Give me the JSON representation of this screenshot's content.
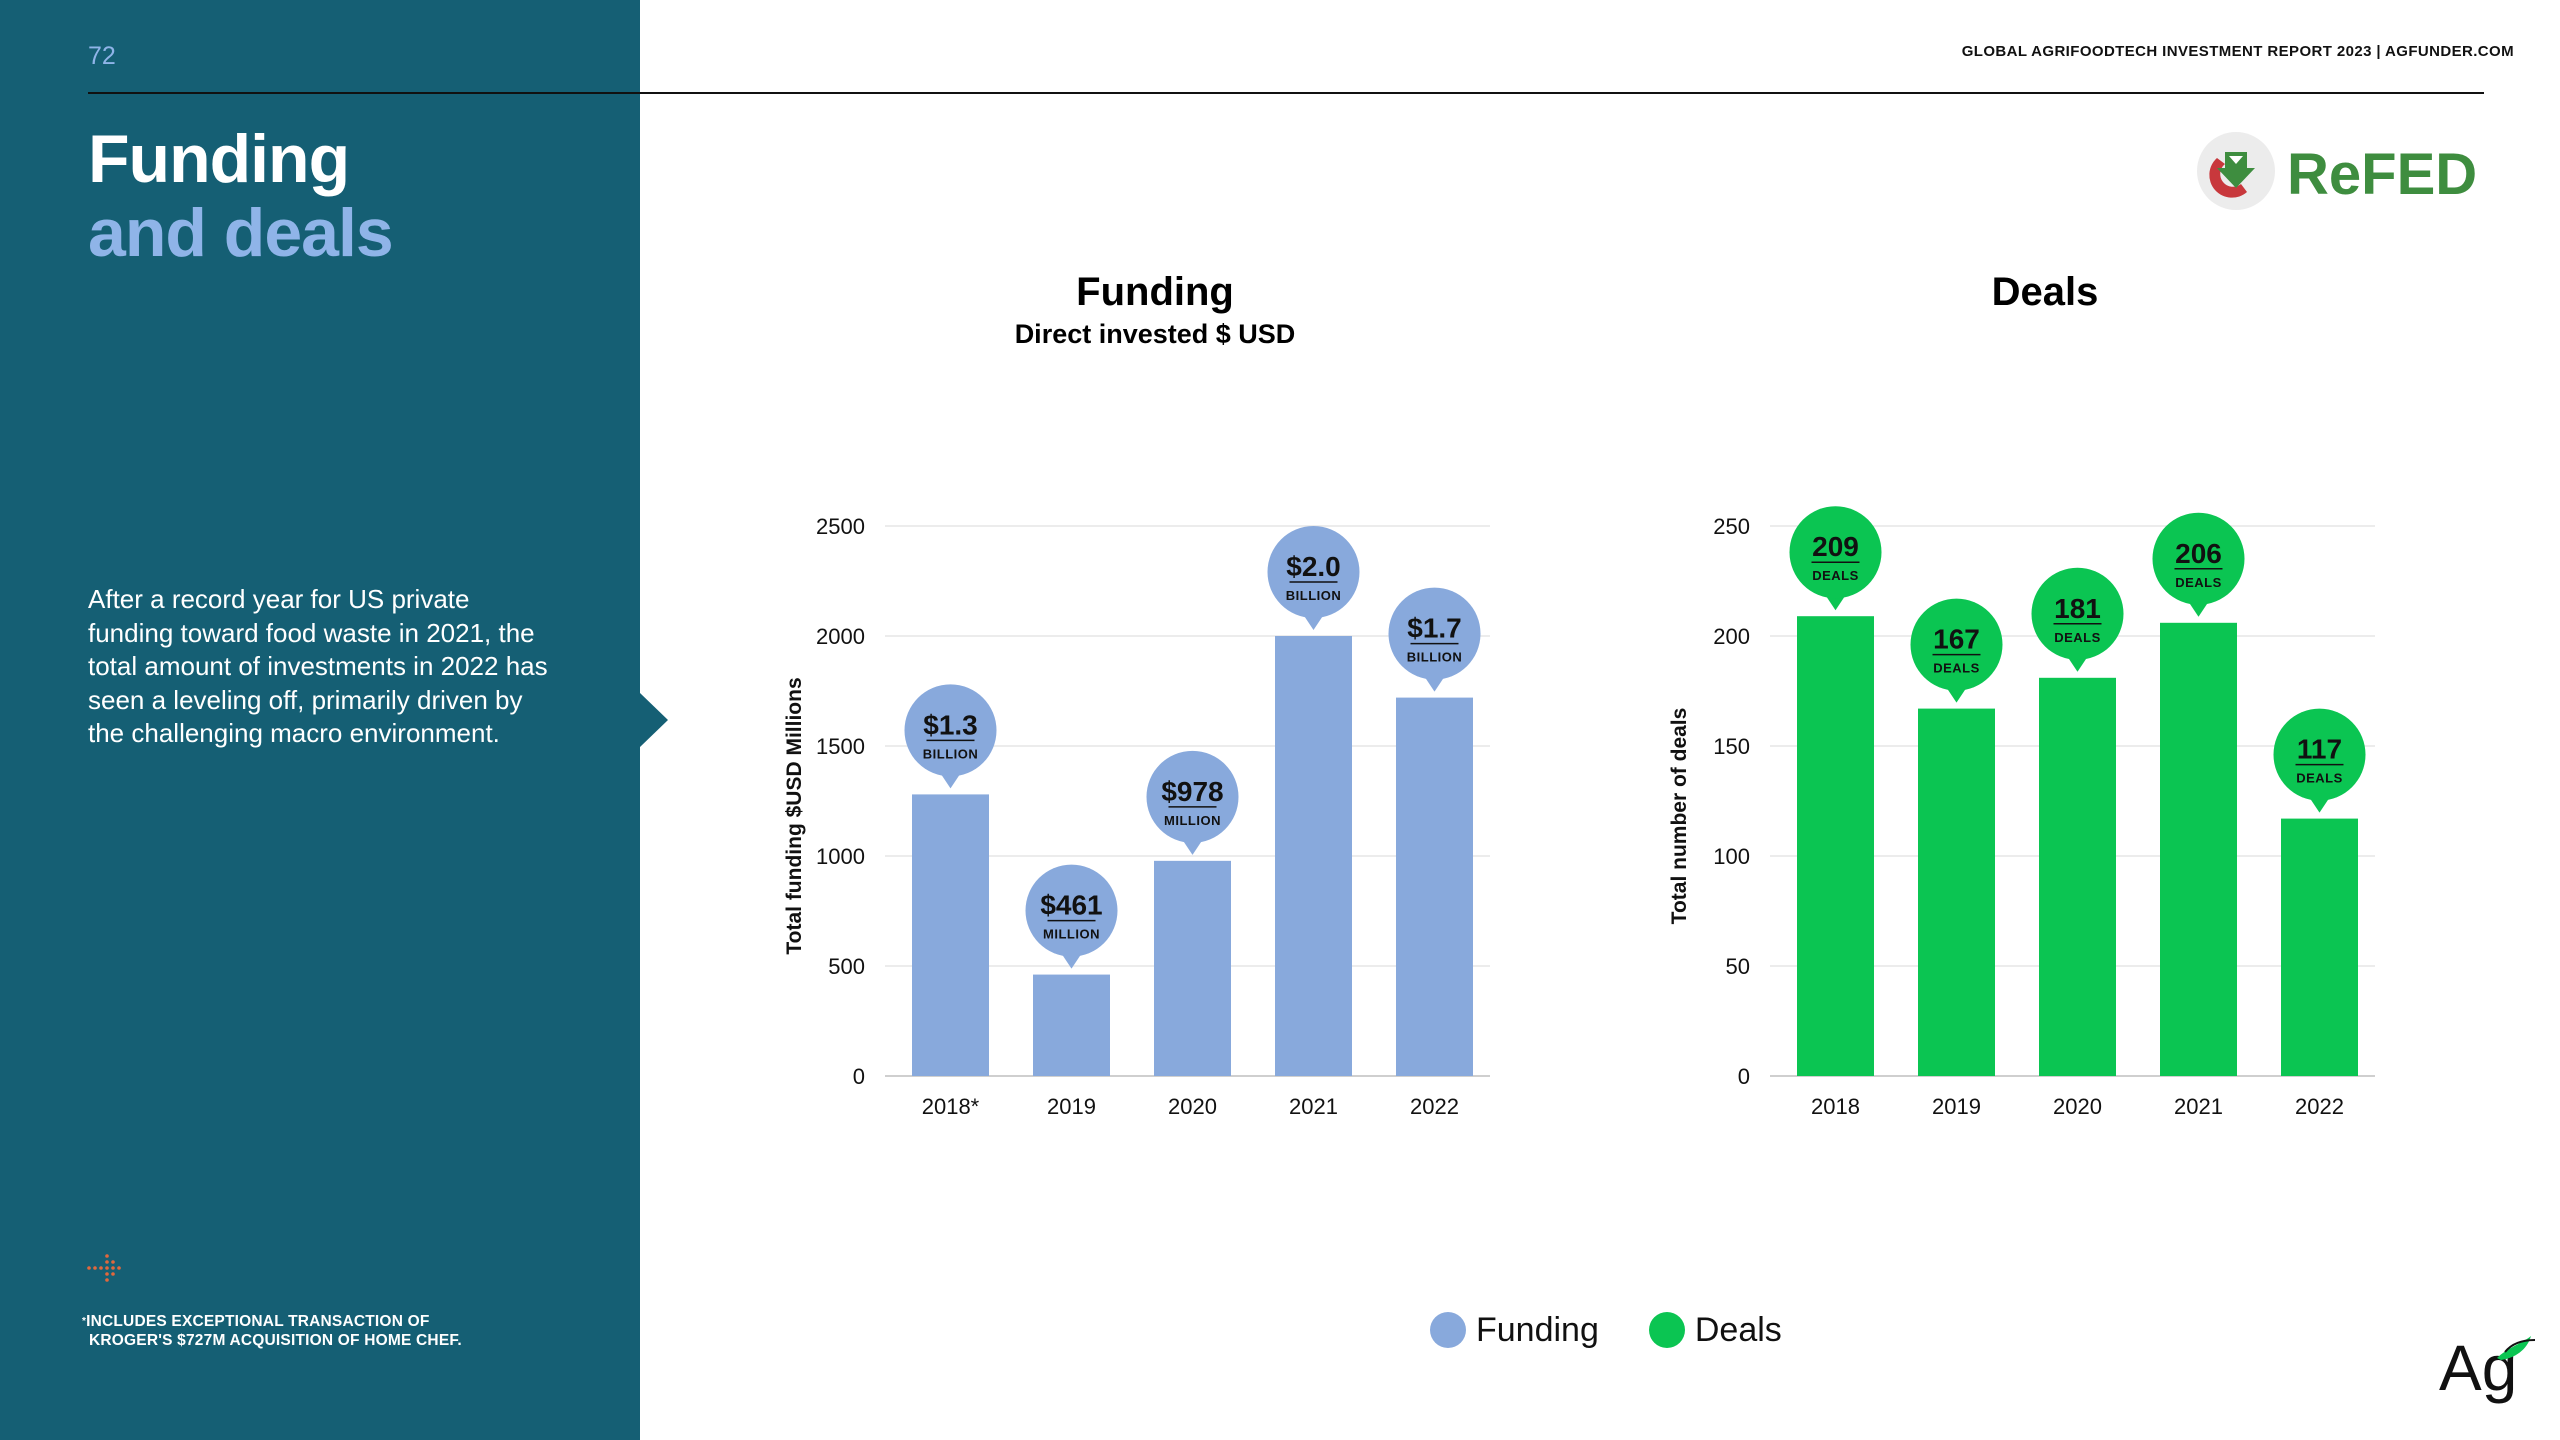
{
  "page": {
    "number": "72",
    "header": "GLOBAL AGRIFOODTECH INVESTMENT REPORT 2023 | AGFUNDER.COM",
    "title_line1": "Funding",
    "title_line2": "and deals",
    "intro": "After a record year for US private funding toward food waste in 2021, the total amount of investments in 2022 has seen a leveling off, primarily driven by the challenging macro environment.",
    "footnote_line1": "INCLUDES EXCEPTIONAL TRANSACTION OF",
    "footnote_line2": "KROGER'S $727M ACQUISITION OF HOME CHEF.",
    "footnote_marker": "*",
    "logo_text": "ReFED",
    "brand_logo_text": "Ag"
  },
  "colors": {
    "sidebar": "#155f74",
    "accent_light_blue": "#8fb4e8",
    "funding_bar": "#88a9dc",
    "deals_bar": "#0bc552",
    "refed_green": "#3e8d3f",
    "refed_dark": "#2f3f4c",
    "refed_red": "#c8383c"
  },
  "legend": [
    {
      "label": "Funding",
      "color": "#88a9dc"
    },
    {
      "label": "Deals",
      "color": "#0bc552"
    }
  ],
  "chart_data": [
    {
      "type": "bar",
      "title": "Funding",
      "subtitle": "Direct invested $ USD",
      "ylabel": "Total funding $USD Millions",
      "xlabel": "",
      "categories": [
        "2018*",
        "2019",
        "2020",
        "2021",
        "2022"
      ],
      "values": [
        1280,
        461,
        978,
        2000,
        1720
      ],
      "ylim": [
        0,
        2500
      ],
      "yticks": [
        0,
        500,
        1000,
        1500,
        2000,
        2500
      ],
      "grid": true,
      "color": "#88a9dc",
      "data_labels": [
        {
          "value": "$1.3",
          "unit": "BILLION"
        },
        {
          "value": "$461",
          "unit": "MILLION"
        },
        {
          "value": "$978",
          "unit": "MILLION"
        },
        {
          "value": "$2.0",
          "unit": "BILLION"
        },
        {
          "value": "$1.7",
          "unit": "BILLION"
        }
      ]
    },
    {
      "type": "bar",
      "title": "Deals",
      "subtitle": "",
      "ylabel": "Total number of deals",
      "xlabel": "",
      "categories": [
        "2018",
        "2019",
        "2020",
        "2021",
        "2022"
      ],
      "values": [
        209,
        167,
        181,
        206,
        117
      ],
      "ylim": [
        0,
        250
      ],
      "yticks": [
        0,
        50,
        100,
        150,
        200,
        250
      ],
      "grid": true,
      "color": "#0bc552",
      "data_labels": [
        {
          "value": "209",
          "unit": "DEALS"
        },
        {
          "value": "167",
          "unit": "DEALS"
        },
        {
          "value": "181",
          "unit": "DEALS"
        },
        {
          "value": "206",
          "unit": "DEALS"
        },
        {
          "value": "117",
          "unit": "DEALS"
        }
      ]
    }
  ]
}
